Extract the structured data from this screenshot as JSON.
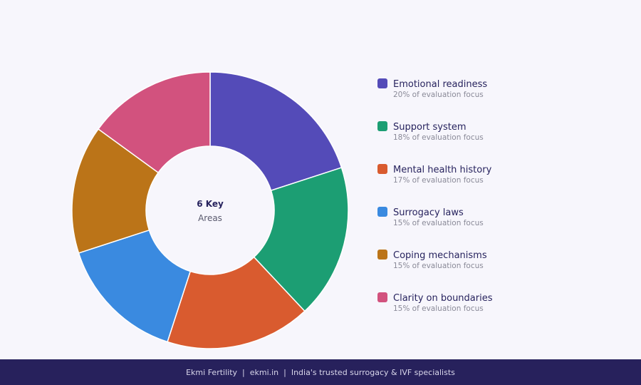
{
  "chart_data": {
    "type": "pie",
    "donut": true,
    "center_text": {
      "bold": "6 Key",
      "sub": "Areas"
    },
    "categories": [
      "Emotional readiness",
      "Support system",
      "Mental health history",
      "Surrogacy laws",
      "Coping mechanisms",
      "Clarity on boundaries"
    ],
    "values": [
      20,
      18,
      17,
      15,
      15,
      15
    ],
    "value_labels": [
      "20% of evaluation focus",
      "18% of evaluation focus",
      "17% of evaluation focus",
      "15% of evaluation focus",
      "15% of evaluation focus",
      "15% of evaluation focus"
    ],
    "colors": [
      "#544bb8",
      "#1c9e73",
      "#d95b2f",
      "#3a8ae0",
      "#bb7418",
      "#d2527e"
    ],
    "legend_position": "right"
  },
  "footer": {
    "text": "Ekmi Fertility  |  ekmi.in  |  India's trusted surrogacy & IVF specialists"
  }
}
